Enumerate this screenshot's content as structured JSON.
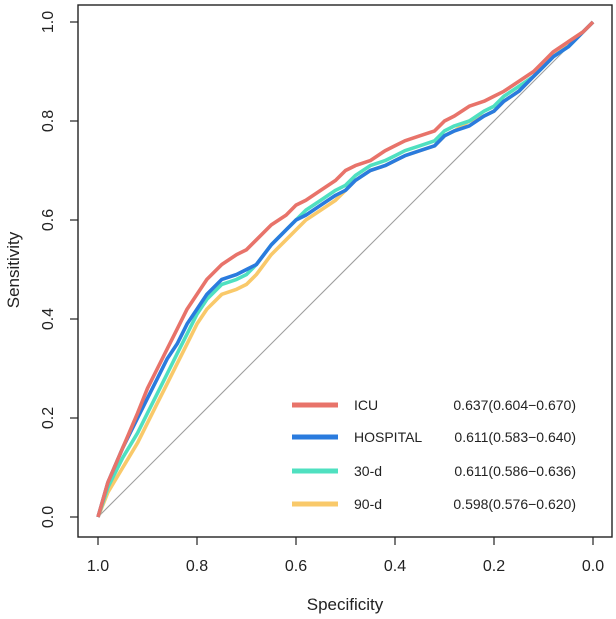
{
  "chart_data": {
    "type": "line",
    "title": "",
    "xlabel": "Specificity",
    "ylabel": "Sensitivity",
    "xlim": [
      1.0,
      0.0
    ],
    "ylim": [
      0.0,
      1.0
    ],
    "x_ticks": [
      1.0,
      0.8,
      0.6,
      0.4,
      0.2,
      0.0
    ],
    "x_tick_labels": [
      "1.0",
      "0.8",
      "0.6",
      "0.4",
      "0.2",
      "0.0"
    ],
    "y_ticks": [
      0.0,
      0.2,
      0.4,
      0.6,
      0.8,
      1.0
    ],
    "y_tick_labels": [
      "0.0",
      "0.2",
      "0.4",
      "0.6",
      "0.8",
      "1.0"
    ],
    "grid": false,
    "legend_position": "bottom-right",
    "reference_line": {
      "from": [
        1.0,
        0.0
      ],
      "to": [
        0.0,
        1.0
      ],
      "color": "#9e9e9e"
    },
    "series": [
      {
        "name": "ICU",
        "auc_text": "0.637(0.604−0.670)",
        "color": "#E8736A",
        "specificity": [
          1.0,
          0.98,
          0.95,
          0.92,
          0.9,
          0.88,
          0.86,
          0.84,
          0.82,
          0.8,
          0.78,
          0.75,
          0.72,
          0.7,
          0.68,
          0.65,
          0.62,
          0.6,
          0.58,
          0.55,
          0.52,
          0.5,
          0.48,
          0.45,
          0.42,
          0.4,
          0.38,
          0.35,
          0.32,
          0.3,
          0.28,
          0.25,
          0.22,
          0.2,
          0.18,
          0.15,
          0.12,
          0.1,
          0.08,
          0.05,
          0.02,
          0.0
        ],
        "sensitivity": [
          0.0,
          0.07,
          0.14,
          0.21,
          0.26,
          0.3,
          0.34,
          0.38,
          0.42,
          0.45,
          0.48,
          0.51,
          0.53,
          0.54,
          0.56,
          0.59,
          0.61,
          0.63,
          0.64,
          0.66,
          0.68,
          0.7,
          0.71,
          0.72,
          0.74,
          0.75,
          0.76,
          0.77,
          0.78,
          0.8,
          0.81,
          0.83,
          0.84,
          0.85,
          0.86,
          0.88,
          0.9,
          0.92,
          0.94,
          0.96,
          0.98,
          1.0
        ]
      },
      {
        "name": "HOSPITAL",
        "auc_text": "0.611(0.583−0.640)",
        "color": "#2A7BDE",
        "specificity": [
          1.0,
          0.98,
          0.95,
          0.92,
          0.9,
          0.88,
          0.86,
          0.84,
          0.82,
          0.8,
          0.78,
          0.75,
          0.72,
          0.7,
          0.68,
          0.65,
          0.62,
          0.6,
          0.58,
          0.55,
          0.52,
          0.5,
          0.48,
          0.45,
          0.42,
          0.4,
          0.38,
          0.35,
          0.32,
          0.3,
          0.28,
          0.25,
          0.22,
          0.2,
          0.18,
          0.15,
          0.12,
          0.1,
          0.08,
          0.05,
          0.02,
          0.0
        ],
        "sensitivity": [
          0.0,
          0.07,
          0.14,
          0.2,
          0.24,
          0.28,
          0.32,
          0.35,
          0.39,
          0.42,
          0.45,
          0.48,
          0.49,
          0.5,
          0.51,
          0.55,
          0.58,
          0.6,
          0.61,
          0.63,
          0.65,
          0.66,
          0.68,
          0.7,
          0.71,
          0.72,
          0.73,
          0.74,
          0.75,
          0.77,
          0.78,
          0.79,
          0.81,
          0.82,
          0.84,
          0.86,
          0.89,
          0.91,
          0.93,
          0.95,
          0.98,
          1.0
        ]
      },
      {
        "name": "30-d",
        "auc_text": "0.611(0.586−0.636)",
        "color": "#4FE0C0",
        "specificity": [
          1.0,
          0.98,
          0.95,
          0.92,
          0.9,
          0.88,
          0.86,
          0.84,
          0.82,
          0.8,
          0.78,
          0.75,
          0.72,
          0.7,
          0.68,
          0.65,
          0.62,
          0.6,
          0.58,
          0.55,
          0.52,
          0.5,
          0.48,
          0.45,
          0.42,
          0.4,
          0.38,
          0.35,
          0.32,
          0.3,
          0.28,
          0.25,
          0.22,
          0.2,
          0.18,
          0.15,
          0.12,
          0.1,
          0.08,
          0.05,
          0.02,
          0.0
        ],
        "sensitivity": [
          0.0,
          0.06,
          0.12,
          0.17,
          0.21,
          0.25,
          0.29,
          0.33,
          0.37,
          0.41,
          0.44,
          0.47,
          0.48,
          0.49,
          0.51,
          0.55,
          0.58,
          0.6,
          0.62,
          0.64,
          0.66,
          0.67,
          0.69,
          0.71,
          0.72,
          0.73,
          0.74,
          0.75,
          0.76,
          0.78,
          0.79,
          0.8,
          0.82,
          0.83,
          0.85,
          0.87,
          0.89,
          0.91,
          0.93,
          0.95,
          0.98,
          1.0
        ]
      },
      {
        "name": "90-d",
        "auc_text": "0.598(0.576−0.620)",
        "color": "#F9C96A",
        "specificity": [
          1.0,
          0.98,
          0.95,
          0.92,
          0.9,
          0.88,
          0.86,
          0.84,
          0.82,
          0.8,
          0.78,
          0.75,
          0.72,
          0.7,
          0.68,
          0.65,
          0.62,
          0.6,
          0.58,
          0.55,
          0.52,
          0.5,
          0.48,
          0.45,
          0.42,
          0.4,
          0.38,
          0.35,
          0.32,
          0.3,
          0.28,
          0.25,
          0.22,
          0.2,
          0.18,
          0.15,
          0.12,
          0.1,
          0.08,
          0.05,
          0.02,
          0.0
        ],
        "sensitivity": [
          0.0,
          0.05,
          0.1,
          0.15,
          0.19,
          0.23,
          0.27,
          0.31,
          0.35,
          0.39,
          0.42,
          0.45,
          0.46,
          0.47,
          0.49,
          0.53,
          0.56,
          0.58,
          0.6,
          0.62,
          0.64,
          0.66,
          0.68,
          0.7,
          0.71,
          0.72,
          0.73,
          0.74,
          0.75,
          0.77,
          0.78,
          0.8,
          0.81,
          0.82,
          0.84,
          0.86,
          0.89,
          0.91,
          0.93,
          0.96,
          0.98,
          1.0
        ]
      }
    ]
  }
}
